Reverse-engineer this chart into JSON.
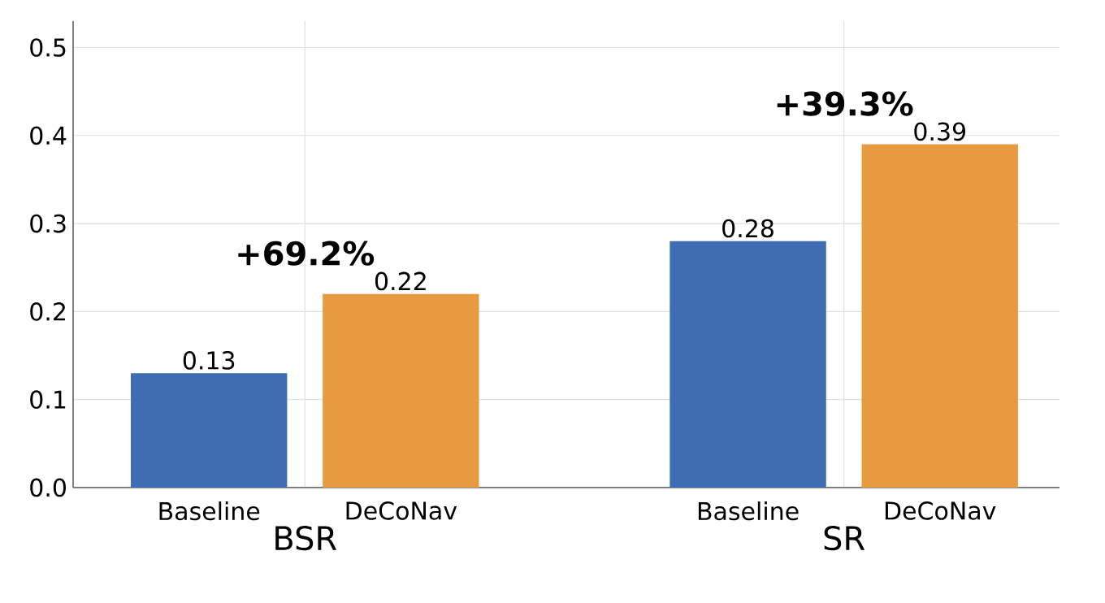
{
  "chart_data": {
    "type": "bar",
    "categories": [
      "BSR",
      "SR"
    ],
    "series": [
      {
        "name": "Baseline",
        "color": "#3f6db3",
        "values": [
          0.13,
          0.28
        ]
      },
      {
        "name": "DeCoNav",
        "color": "#e89a40",
        "values": [
          0.22,
          0.39
        ]
      }
    ],
    "ylim": [
      0,
      0.53
    ],
    "yticks": [
      {
        "value": 0,
        "label": "0.0"
      },
      0.1,
      0.2,
      0.3,
      0.4,
      0.5
    ],
    "grid": true,
    "data_labels": true,
    "annotations": [
      "+69.2%",
      "+39.3%"
    ]
  }
}
